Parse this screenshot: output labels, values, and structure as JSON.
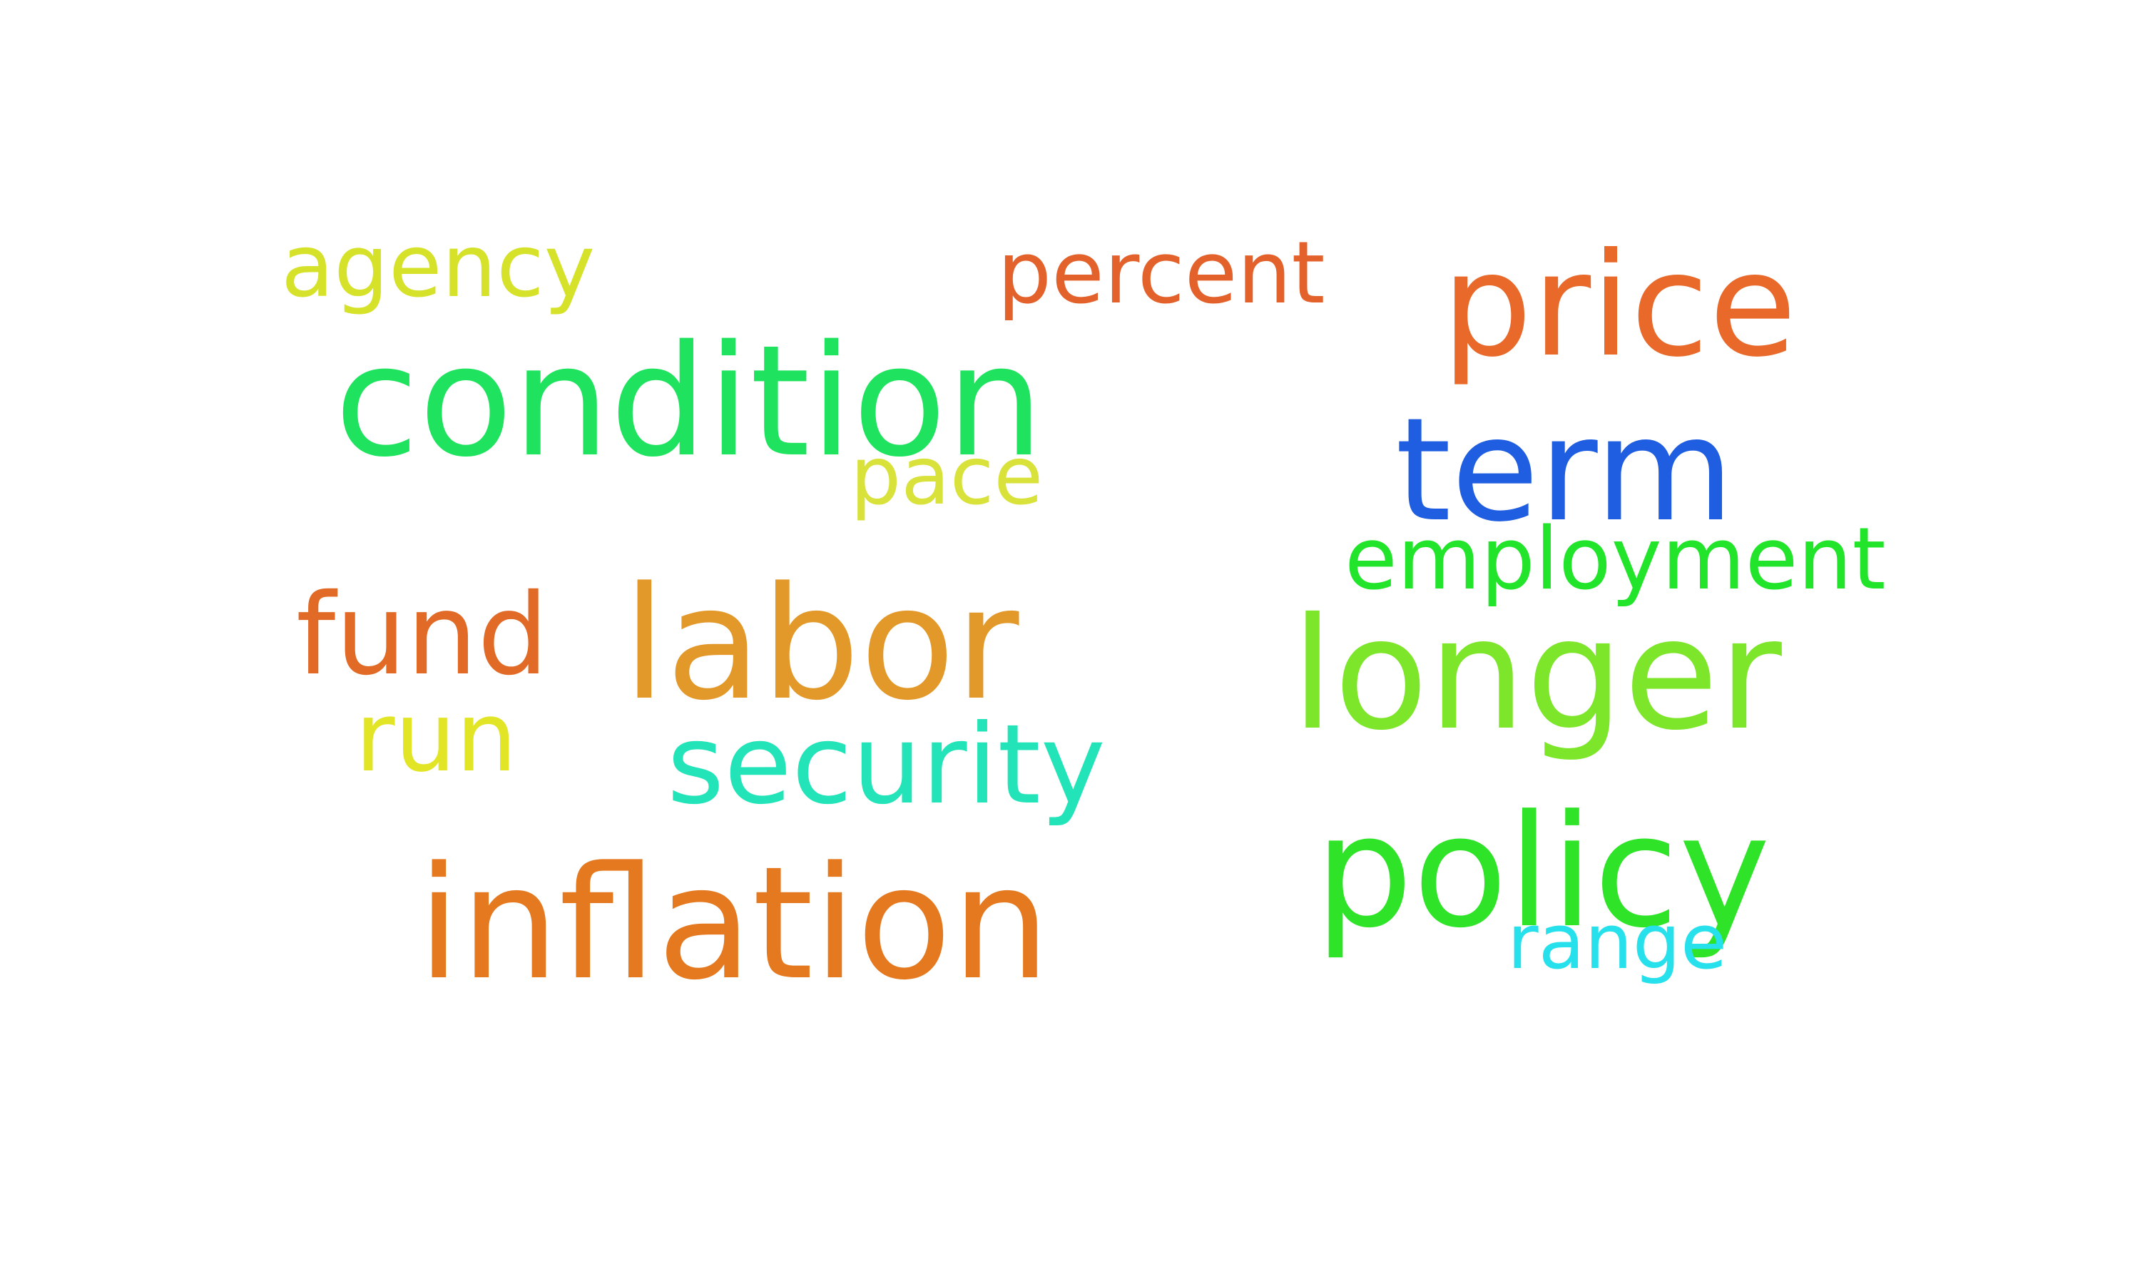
{
  "word_cloud": {
    "background_color": "#ffffff",
    "words": [
      {
        "id": "agency",
        "text": "agency",
        "color": "#d6e22a"
      },
      {
        "id": "percent",
        "text": "percent",
        "color": "#e3612a"
      },
      {
        "id": "price",
        "text": "price",
        "color": "#e8692a"
      },
      {
        "id": "condition",
        "text": "condition",
        "color": "#1fe35e"
      },
      {
        "id": "term",
        "text": "term",
        "color": "#1f5ee0"
      },
      {
        "id": "pace",
        "text": "pace",
        "color": "#d8e23a"
      },
      {
        "id": "employment",
        "text": "employment",
        "color": "#22e52b"
      },
      {
        "id": "fund",
        "text": "fund",
        "color": "#e06a26"
      },
      {
        "id": "labor",
        "text": "labor",
        "color": "#e3992a"
      },
      {
        "id": "longer",
        "text": "longer",
        "color": "#7ee62a"
      },
      {
        "id": "run",
        "text": "run",
        "color": "#e2e525"
      },
      {
        "id": "security",
        "text": "security",
        "color": "#22e4b8"
      },
      {
        "id": "policy",
        "text": "policy",
        "color": "#2fe428"
      },
      {
        "id": "inflation",
        "text": "inflation",
        "color": "#e5791f"
      },
      {
        "id": "range",
        "text": "range",
        "color": "#26e1ec"
      }
    ]
  }
}
